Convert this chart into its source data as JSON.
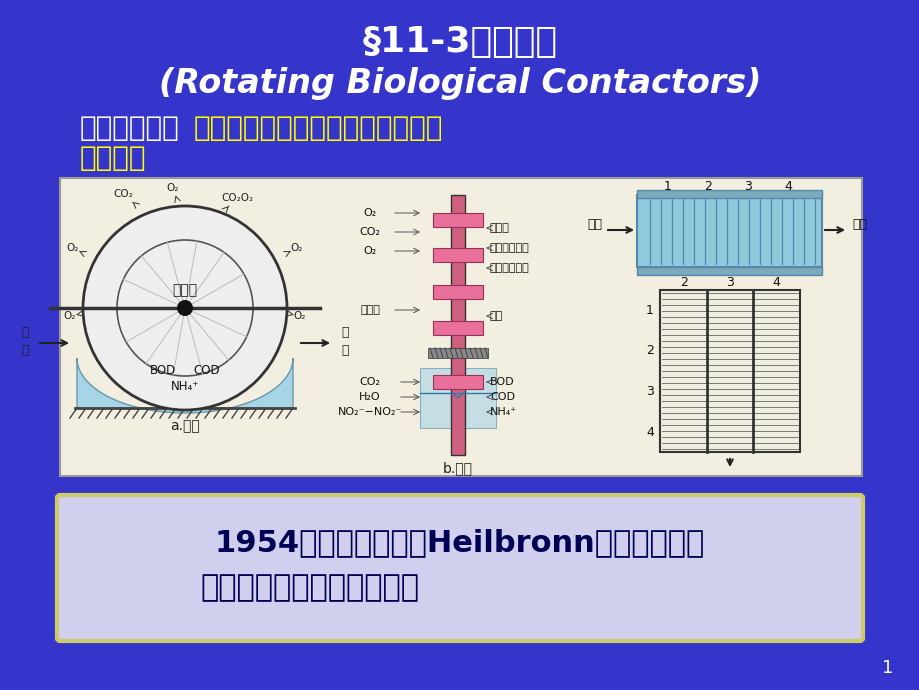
{
  "bg_color": "#3535CC",
  "title_line1": "§11-3生物转盘",
  "title_line2": "(Rotating Biological Contactors)",
  "subtitle_white": "生物转盘又称",
  "subtitle_yellow1": "浸没式生物滤池，也叫旋转式生物",
  "subtitle_yellow2": "反应器。",
  "bottom_text_line1": "1954年在联邦德国的Heilbronn建成世界上第",
  "bottom_text_line2": "一座生物转盘污水处理厂。",
  "page_number": "1",
  "white": "#FFFFFF",
  "yellow": "#FFFF00",
  "dark_navy": "#000055",
  "diag_bg": "#F2EEE0",
  "box_bg": "#D0D0EE",
  "box_border": "#CCCC66",
  "water_blue": "#A8D4E8",
  "disc_pink": "#E8709A",
  "shaft_pink": "#D06080",
  "rbc_blue": "#90C8DC",
  "rbc_dark": "#5588AA"
}
